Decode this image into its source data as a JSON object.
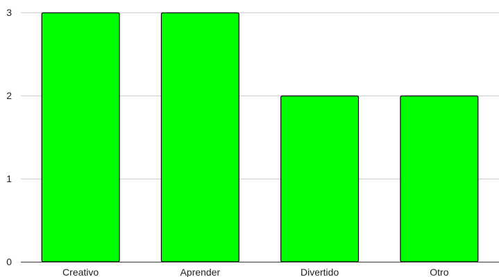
{
  "chart_data": {
    "type": "bar",
    "categories": [
      "Creativo",
      "Aprender",
      "Divertido",
      "Otro"
    ],
    "values": [
      3,
      3,
      2,
      2
    ],
    "title": "",
    "xlabel": "",
    "ylabel": "",
    "ylim": [
      0,
      3
    ],
    "yticks": [
      0,
      1,
      2,
      3
    ],
    "grid": true,
    "legend": "none"
  },
  "colors": {
    "bar_fill": "#00ff00",
    "bar_stroke": "#000000",
    "grid": "#cccccc",
    "axis": "#333333",
    "text": "#222222"
  }
}
